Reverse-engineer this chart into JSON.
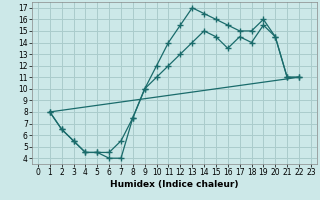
{
  "xlabel": "Humidex (Indice chaleur)",
  "bg_color": "#cce8e8",
  "grid_color": "#aacccc",
  "line_color": "#1a6b6b",
  "xlim": [
    -0.5,
    23.5
  ],
  "ylim": [
    3.5,
    17.5
  ],
  "xticks": [
    0,
    1,
    2,
    3,
    4,
    5,
    6,
    7,
    8,
    9,
    10,
    11,
    12,
    13,
    14,
    15,
    16,
    17,
    18,
    19,
    20,
    21,
    22,
    23
  ],
  "yticks": [
    4,
    5,
    6,
    7,
    8,
    9,
    10,
    11,
    12,
    13,
    14,
    15,
    16,
    17
  ],
  "line1_x": [
    1,
    2,
    3,
    4,
    5,
    6,
    7,
    8,
    9,
    10,
    11,
    12,
    13,
    14,
    15,
    16,
    17,
    18,
    19,
    20,
    21,
    22
  ],
  "line1_y": [
    8,
    6.5,
    5.5,
    4.5,
    4.5,
    4,
    4,
    7.5,
    10,
    12,
    14,
    15.5,
    17,
    16.5,
    16,
    15.5,
    15,
    15,
    16,
    14.5,
    11,
    11
  ],
  "line2_x": [
    1,
    2,
    3,
    4,
    5,
    6,
    7,
    8,
    9,
    10,
    11,
    12,
    13,
    14,
    15,
    16,
    17,
    18,
    19,
    20,
    21,
    22
  ],
  "line2_y": [
    8,
    6.5,
    5.5,
    4.5,
    4.5,
    4.5,
    5.5,
    7.5,
    10,
    11,
    12,
    13,
    14,
    15,
    14.5,
    13.5,
    14.5,
    14,
    15.5,
    14.5,
    11,
    11
  ],
  "line3_x": [
    1,
    22
  ],
  "line3_y": [
    8,
    11
  ],
  "marker": "+"
}
